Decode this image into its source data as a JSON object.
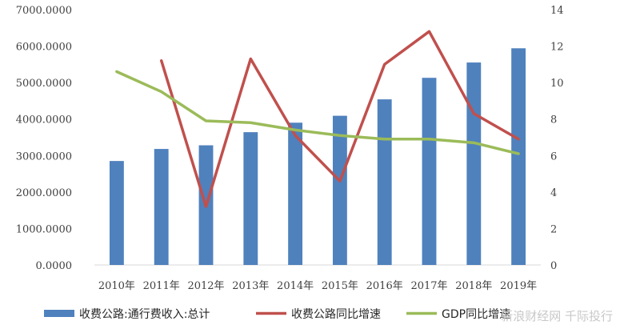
{
  "chart_data": {
    "type": "bar",
    "categories": [
      "2010年",
      "2011年",
      "2012年",
      "2013年",
      "2014年",
      "2015年",
      "2016年",
      "2017年",
      "2018年",
      "2019年"
    ],
    "series": [
      {
        "name": "收费公路:通行费收入:总计",
        "type": "bar",
        "axis": "left",
        "color": "#4F81BD",
        "values": [
          2850,
          3180,
          3280,
          3640,
          3900,
          4090,
          4540,
          5130,
          5550,
          5940
        ]
      },
      {
        "name": "收费公路同比增速",
        "type": "line",
        "axis": "right",
        "color": "#C0504D",
        "values": [
          null,
          11.2,
          3.2,
          11.3,
          7.1,
          4.6,
          11.0,
          12.8,
          8.3,
          6.9
        ]
      },
      {
        "name": "GDP同比增速",
        "type": "line",
        "axis": "right",
        "color": "#9BBB59",
        "values": [
          10.6,
          9.5,
          7.9,
          7.8,
          7.4,
          7.1,
          6.9,
          6.9,
          6.7,
          6.1
        ]
      }
    ],
    "y_left": {
      "ylim": [
        0,
        7000
      ],
      "ticks": [
        "0.0000",
        "1000.0000",
        "2000.0000",
        "3000.0000",
        "4000.0000",
        "5000.0000",
        "6000.0000",
        "7000.0000"
      ]
    },
    "y_right": {
      "ylim": [
        0,
        14
      ],
      "ticks": [
        "0",
        "2",
        "4",
        "6",
        "8",
        "10",
        "12",
        "14"
      ]
    },
    "grid": false,
    "legend_position": "bottom"
  },
  "watermark": "新浪财经网 千际投行"
}
